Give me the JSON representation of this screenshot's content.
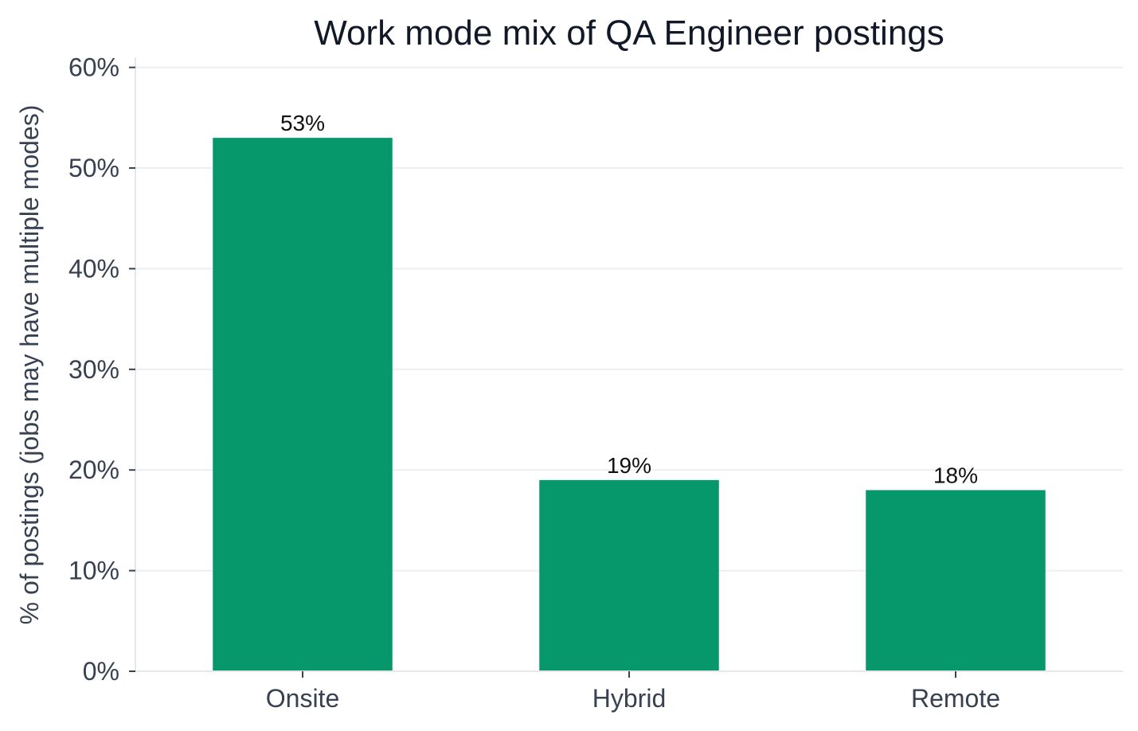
{
  "chart_data": {
    "type": "bar",
    "title": "Work mode mix of QA Engineer postings",
    "xlabel": "",
    "ylabel": "% of postings (jobs may have multiple modes)",
    "categories": [
      "Onsite",
      "Hybrid",
      "Remote"
    ],
    "values": [
      53,
      19,
      18
    ],
    "value_labels": [
      "53%",
      "19%",
      "18%"
    ],
    "ylim": [
      0,
      61
    ],
    "yticks": [
      0,
      10,
      20,
      30,
      40,
      50,
      60
    ],
    "ytick_labels": [
      "0%",
      "10%",
      "20%",
      "30%",
      "40%",
      "50%",
      "60%"
    ],
    "bar_color": "#06976a",
    "grid": "horizontal",
    "legend": "none"
  }
}
